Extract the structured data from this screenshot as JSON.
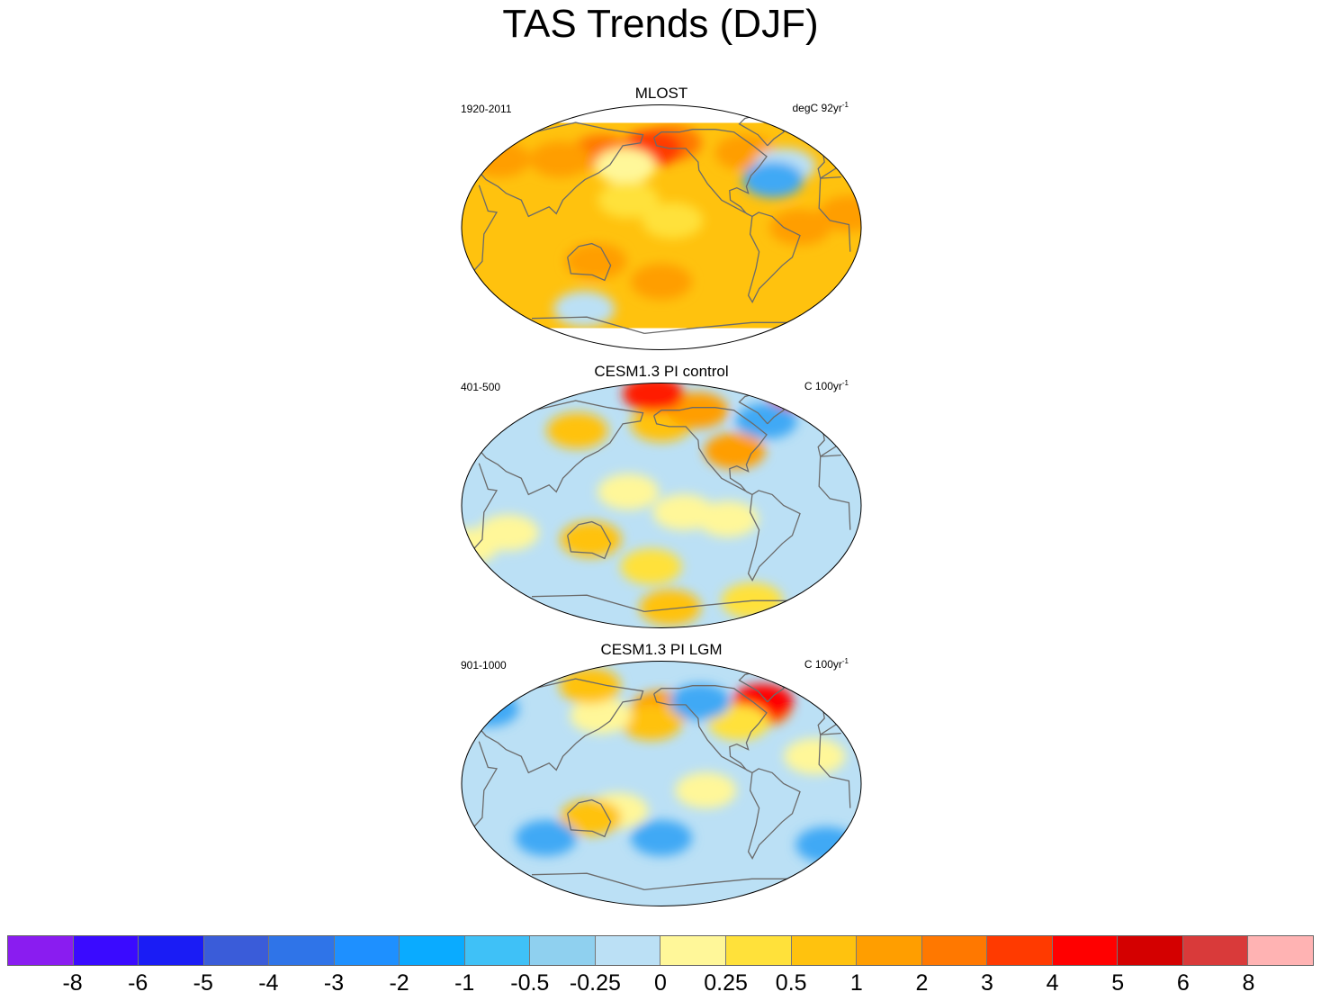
{
  "title": "TAS Trends (DJF)",
  "panels": [
    {
      "title": "MLOST",
      "left_label": "1920-2011",
      "right_label_prefix": "degC 92yr",
      "right_label_exp": "-1",
      "base_color": "#ffc20e",
      "patches": [
        {
          "lon": -150,
          "lat": 62,
          "color": "#ff7800"
        },
        {
          "lon": -170,
          "lat": 58,
          "color": "#ff3a00"
        },
        {
          "lon": 140,
          "lat": 55,
          "color": "#ff7800"
        },
        {
          "lon": 100,
          "lat": 50,
          "color": "#ff9e00"
        },
        {
          "lon": -75,
          "lat": 55,
          "color": "#ff9e00"
        },
        {
          "lon": -40,
          "lat": 45,
          "color": "#bbe0f5"
        },
        {
          "lon": -55,
          "lat": 35,
          "color": "#3fa9f5"
        },
        {
          "lon": 165,
          "lat": 45,
          "color": "#fff799"
        },
        {
          "lon": 170,
          "lat": 20,
          "color": "#ffe13a"
        },
        {
          "lon": -150,
          "lat": 5,
          "color": "#ffe13a"
        },
        {
          "lon": 40,
          "lat": 50,
          "color": "#ff9e00"
        },
        {
          "lon": -35,
          "lat": 0,
          "color": "#ff9e00"
        },
        {
          "lon": 10,
          "lat": 10,
          "color": "#ff9e00"
        },
        {
          "lon": 120,
          "lat": -60,
          "color": "#bbe0f5"
        },
        {
          "lon": -160,
          "lat": -40,
          "color": "#ff9e00"
        },
        {
          "lon": 140,
          "lat": -25,
          "color": "#ff9e00"
        }
      ]
    },
    {
      "title": "CESM1.3 PI control",
      "left_label": "401-500",
      "right_label_prefix": "C 100yr",
      "right_label_exp": "-1",
      "base_color": "#bbe0f5",
      "patches": [
        {
          "lon": -160,
          "lat": 60,
          "color": "#ffc20e"
        },
        {
          "lon": -120,
          "lat": 70,
          "color": "#ff9e00"
        },
        {
          "lon": 115,
          "lat": 55,
          "color": "#ffc20e"
        },
        {
          "lon": -50,
          "lat": 62,
          "color": "#3fa9f5"
        },
        {
          "lon": -90,
          "lat": 40,
          "color": "#ff9e00"
        },
        {
          "lon": 170,
          "lat": 10,
          "color": "#fff799"
        },
        {
          "lon": -140,
          "lat": -5,
          "color": "#fff799"
        },
        {
          "lon": -100,
          "lat": -10,
          "color": "#fff799"
        },
        {
          "lon": 135,
          "lat": -25,
          "color": "#ffc20e"
        },
        {
          "lon": 20,
          "lat": -30,
          "color": "#fff799"
        },
        {
          "lon": 60,
          "lat": -20,
          "color": "#fff799"
        },
        {
          "lon": -170,
          "lat": -45,
          "color": "#ffe13a"
        },
        {
          "lon": -150,
          "lat": -75,
          "color": "#ffc20e"
        },
        {
          "lon": -60,
          "lat": -70,
          "color": "#ffe13a"
        },
        {
          "lon": -170,
          "lat": 82,
          "color": "#ff1e00"
        },
        {
          "lon": 10,
          "lat": 84,
          "color": "#ff0000"
        }
      ]
    },
    {
      "title": "CESM1.3 PI LGM",
      "left_label": "901-1000",
      "right_label_prefix": "C 100yr",
      "right_label_exp": "-1",
      "base_color": "#bbe0f5",
      "patches": [
        {
          "lon": -160,
          "lat": 55,
          "color": "#ff9e00"
        },
        {
          "lon": -170,
          "lat": 45,
          "color": "#ffc20e"
        },
        {
          "lon": 140,
          "lat": 50,
          "color": "#fff799"
        },
        {
          "lon": -60,
          "lat": 55,
          "color": "#ff7800"
        },
        {
          "lon": -55,
          "lat": 60,
          "color": "#ff0000"
        },
        {
          "lon": -85,
          "lat": 45,
          "color": "#ffe13a"
        },
        {
          "lon": 120,
          "lat": 72,
          "color": "#ffc20e"
        },
        {
          "lon": -120,
          "lat": 60,
          "color": "#3fa9f5"
        },
        {
          "lon": 25,
          "lat": 55,
          "color": "#3fa9f5"
        },
        {
          "lon": 160,
          "lat": -20,
          "color": "#fff799"
        },
        {
          "lon": 135,
          "lat": -25,
          "color": "#ffc20e"
        },
        {
          "lon": -20,
          "lat": 20,
          "color": "#fff799"
        },
        {
          "lon": -120,
          "lat": -5,
          "color": "#fff799"
        },
        {
          "lon": 0,
          "lat": -45,
          "color": "#3fa9f5"
        },
        {
          "lon": 90,
          "lat": -40,
          "color": "#3fa9f5"
        },
        {
          "lon": -160,
          "lat": -40,
          "color": "#3fa9f5"
        }
      ]
    }
  ],
  "colorbar": {
    "colors": [
      "#8a1cf0",
      "#3a0aff",
      "#1a1cf5",
      "#3a5cd9",
      "#2f74e8",
      "#1e90ff",
      "#0aabff",
      "#3fc1f7",
      "#8fd0ef",
      "#bbe0f5",
      "#fff799",
      "#ffe13a",
      "#ffc20e",
      "#ff9e00",
      "#ff7800",
      "#ff3a00",
      "#ff0000",
      "#d40000",
      "#d93a3a",
      "#ffb3b3"
    ],
    "labels": [
      "-8",
      "-6",
      "-5",
      "-4",
      "-3",
      "-2",
      "-1",
      "-0.5",
      "-0.25",
      "0",
      "0.25",
      "0.5",
      "1",
      "2",
      "3",
      "4",
      "5",
      "6",
      "8"
    ]
  }
}
